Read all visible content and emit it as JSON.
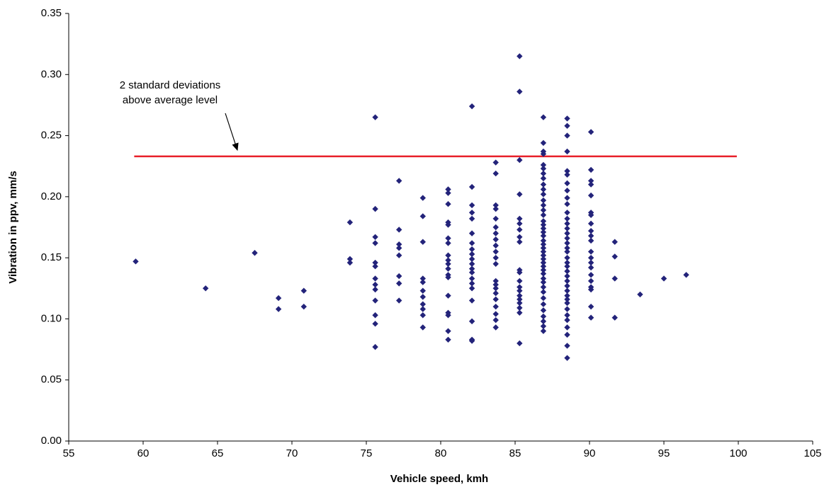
{
  "chart_data": {
    "type": "scatter",
    "xlabel": "Vehicle speed, kmh",
    "ylabel": "Vibration in ppv, mm/s",
    "xlim": [
      55,
      105
    ],
    "xticks": [
      55,
      60,
      65,
      70,
      75,
      80,
      85,
      90,
      95,
      100,
      105
    ],
    "ylim": [
      0,
      0.35
    ],
    "yticks": [
      {
        "value": 0,
        "label": "0.00"
      },
      0.05,
      {
        "value": 0.1,
        "label": "0.10"
      },
      0.15,
      {
        "value": 0.2,
        "label": "0.20"
      },
      0.25,
      {
        "value": 0.3,
        "label": "0.30"
      },
      0.35
    ],
    "reference_line": {
      "y": 0.233,
      "x": [
        59.4,
        99.9
      ],
      "color": "#e8202a"
    },
    "annotation": [
      "2 standard deviations",
      "above average level"
    ],
    "series": [
      {
        "color": "#23237a",
        "x": [
          59.5,
          64.2,
          67.5,
          69.1,
          69.1,
          70.8,
          70.8,
          73.9,
          73.9,
          73.9,
          75.6,
          75.6,
          75.6,
          75.6,
          75.6,
          75.6,
          75.6,
          75.6,
          75.6,
          75.6,
          75.6,
          75.6,
          75.6,
          77.2,
          77.2,
          77.2,
          77.2,
          77.2,
          77.2,
          77.2,
          77.2,
          78.8,
          78.8,
          78.8,
          78.8,
          78.8,
          78.8,
          78.8,
          78.8,
          78.8,
          78.8,
          78.8,
          80.5,
          80.5,
          80.5,
          80.5,
          80.5,
          80.5,
          80.5,
          80.5,
          80.5,
          80.5,
          80.5,
          80.5,
          80.5,
          80.5,
          80.5,
          80.5,
          80.5,
          80.5,
          82.1,
          82.1,
          82.1,
          82.1,
          82.1,
          82.1,
          82.1,
          82.1,
          82.1,
          82.1,
          82.1,
          82.1,
          82.1,
          82.1,
          82.1,
          82.1,
          82.1,
          82.1,
          82.1,
          82.1,
          83.7,
          83.7,
          83.7,
          83.7,
          83.7,
          83.7,
          83.7,
          83.7,
          83.7,
          83.7,
          83.7,
          83.7,
          83.7,
          83.7,
          83.7,
          83.7,
          83.7,
          83.7,
          83.7,
          83.7,
          83.7,
          85.3,
          85.3,
          85.3,
          85.3,
          85.3,
          85.3,
          85.3,
          85.3,
          85.3,
          85.3,
          85.3,
          85.3,
          85.3,
          85.3,
          85.3,
          85.3,
          85.3,
          85.3,
          85.3,
          85.3,
          86.9,
          86.9,
          86.9,
          86.9,
          86.9,
          86.9,
          86.9,
          86.9,
          86.9,
          86.9,
          86.9,
          86.9,
          86.9,
          86.9,
          86.9,
          86.9,
          86.9,
          86.9,
          86.9,
          86.9,
          86.9,
          86.9,
          86.9,
          86.9,
          86.9,
          86.9,
          86.9,
          86.9,
          86.9,
          86.9,
          86.9,
          86.9,
          86.9,
          86.9,
          86.9,
          86.9,
          86.9,
          86.9,
          86.9,
          86.9,
          86.9,
          88.5,
          88.5,
          88.5,
          88.5,
          88.5,
          88.5,
          88.5,
          88.5,
          88.5,
          88.5,
          88.5,
          88.5,
          88.5,
          88.5,
          88.5,
          88.5,
          88.5,
          88.5,
          88.5,
          88.5,
          88.5,
          88.5,
          88.5,
          88.5,
          88.5,
          88.5,
          88.5,
          88.5,
          88.5,
          88.5,
          88.5,
          88.5,
          88.5,
          88.5,
          88.5,
          88.5,
          88.5,
          90.1,
          90.1,
          90.1,
          90.1,
          90.1,
          90.1,
          90.1,
          90.1,
          90.1,
          90.1,
          90.1,
          90.1,
          90.1,
          90.1,
          90.1,
          90.1,
          90.1,
          90.1,
          90.1,
          90.1,
          90.1,
          91.7,
          91.7,
          91.7,
          91.7,
          93.4,
          95,
          96.5
        ],
        "y": [
          0.147,
          0.125,
          0.154,
          0.117,
          0.108,
          0.123,
          0.11,
          0.179,
          0.149,
          0.146,
          0.265,
          0.19,
          0.167,
          0.162,
          0.146,
          0.143,
          0.133,
          0.128,
          0.124,
          0.115,
          0.103,
          0.096,
          0.077,
          0.213,
          0.173,
          0.161,
          0.158,
          0.152,
          0.135,
          0.129,
          0.115,
          0.199,
          0.184,
          0.163,
          0.133,
          0.13,
          0.123,
          0.118,
          0.112,
          0.108,
          0.103,
          0.093,
          0.206,
          0.203,
          0.194,
          0.179,
          0.177,
          0.166,
          0.162,
          0.152,
          0.148,
          0.145,
          0.141,
          0.136,
          0.134,
          0.119,
          0.105,
          0.103,
          0.09,
          0.083,
          0.274,
          0.208,
          0.193,
          0.187,
          0.182,
          0.17,
          0.162,
          0.157,
          0.153,
          0.149,
          0.145,
          0.141,
          0.138,
          0.133,
          0.129,
          0.125,
          0.115,
          0.098,
          0.083,
          0.082,
          0.228,
          0.219,
          0.193,
          0.19,
          0.182,
          0.175,
          0.17,
          0.165,
          0.16,
          0.155,
          0.15,
          0.145,
          0.131,
          0.128,
          0.125,
          0.121,
          0.116,
          0.11,
          0.104,
          0.099,
          0.093,
          0.315,
          0.286,
          0.23,
          0.202,
          0.182,
          0.178,
          0.173,
          0.167,
          0.163,
          0.14,
          0.138,
          0.131,
          0.126,
          0.123,
          0.119,
          0.116,
          0.113,
          0.109,
          0.105,
          0.08,
          0.265,
          0.244,
          0.237,
          0.235,
          0.226,
          0.223,
          0.219,
          0.215,
          0.21,
          0.206,
          0.202,
          0.197,
          0.193,
          0.189,
          0.185,
          0.18,
          0.177,
          0.174,
          0.171,
          0.168,
          0.164,
          0.161,
          0.158,
          0.155,
          0.152,
          0.149,
          0.146,
          0.143,
          0.14,
          0.137,
          0.133,
          0.13,
          0.126,
          0.122,
          0.117,
          0.112,
          0.107,
          0.102,
          0.098,
          0.094,
          0.09,
          0.264,
          0.258,
          0.25,
          0.237,
          0.221,
          0.218,
          0.211,
          0.205,
          0.199,
          0.194,
          0.187,
          0.182,
          0.178,
          0.174,
          0.17,
          0.166,
          0.162,
          0.158,
          0.155,
          0.15,
          0.146,
          0.143,
          0.139,
          0.135,
          0.131,
          0.127,
          0.123,
          0.119,
          0.116,
          0.113,
          0.108,
          0.103,
          0.099,
          0.093,
          0.087,
          0.078,
          0.068,
          0.253,
          0.222,
          0.213,
          0.21,
          0.201,
          0.187,
          0.185,
          0.178,
          0.172,
          0.168,
          0.164,
          0.155,
          0.15,
          0.146,
          0.142,
          0.136,
          0.131,
          0.126,
          0.124,
          0.11,
          0.101,
          0.163,
          0.151,
          0.133,
          0.101,
          0.12,
          0.133,
          0.136
        ]
      }
    ]
  }
}
